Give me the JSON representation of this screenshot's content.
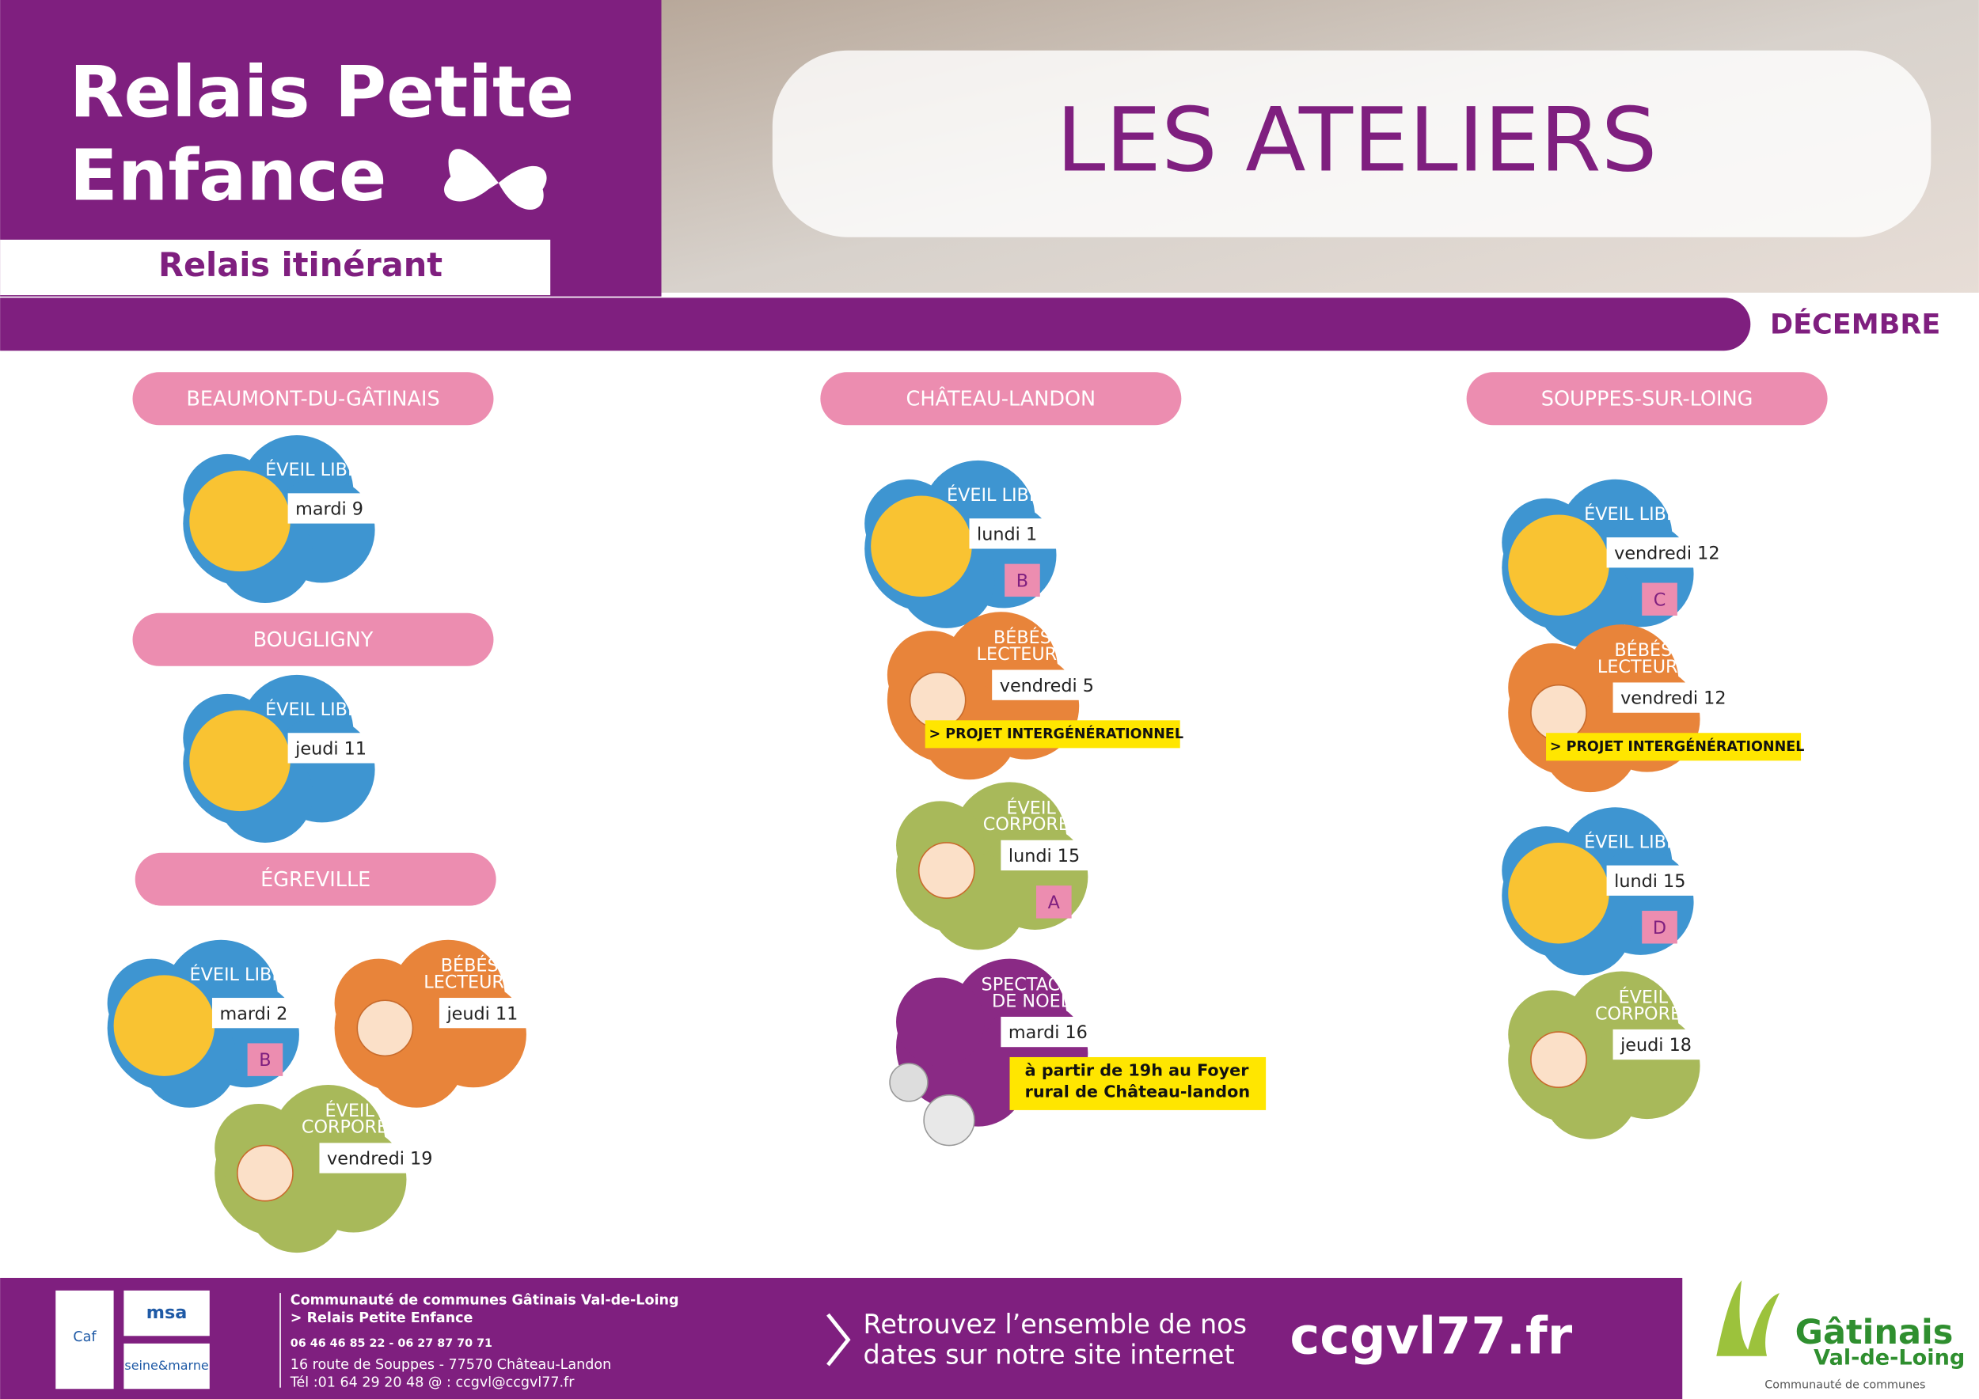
{
  "header": {
    "title_line1": "Relais Petite",
    "title_line2": "Enfance",
    "subtitle": "Relais itinérant",
    "banner": "LES ATELIERS",
    "month": "DÉCEMBRE"
  },
  "locations": [
    {
      "name": "BEAUMONT-DU-GÂTINAIS",
      "ateliers": [
        {
          "kind": "libre",
          "label": [
            "ÉVEIL LIBRE"
          ],
          "day": "mardi 9"
        }
      ]
    },
    {
      "name": "BOUGLIGNY",
      "ateliers": [
        {
          "kind": "libre",
          "label": [
            "ÉVEIL LIBRE"
          ],
          "day": "jeudi 11"
        }
      ]
    },
    {
      "name": "ÉGREVILLE",
      "ateliers": [
        {
          "kind": "libre",
          "label": [
            "ÉVEIL LIBRE"
          ],
          "day": "mardi 2",
          "letter": "B"
        },
        {
          "kind": "lecteurs",
          "label": [
            "BÉBÉS",
            "LECTEURS"
          ],
          "day": "jeudi 11"
        },
        {
          "kind": "corporel",
          "label": [
            "ÉVEIL",
            "CORPOREL"
          ],
          "day": "vendredi 19"
        }
      ]
    },
    {
      "name": "CHÂTEAU-LANDON",
      "ateliers": [
        {
          "kind": "libre",
          "label": [
            "ÉVEIL LIBRE"
          ],
          "day": "lundi 1",
          "letter": "B"
        },
        {
          "kind": "lecteurs",
          "label": [
            "BÉBÉS",
            "LECTEURS"
          ],
          "day": "vendredi 5",
          "note": [
            "> PROJET INTERGÉNÉRATIONNEL"
          ]
        },
        {
          "kind": "corporel",
          "label": [
            "ÉVEIL",
            "CORPOREL"
          ],
          "day": "lundi 15",
          "letter": "A"
        },
        {
          "kind": "spectacle",
          "label": [
            "SPECTACLE",
            "DE NOEL"
          ],
          "day": "mardi 16",
          "note": [
            "à partir de 19h au Foyer",
            "rural de Château-landon"
          ]
        }
      ]
    },
    {
      "name": "SOUPPES-SUR-LOING",
      "ateliers": [
        {
          "kind": "libre",
          "label": [
            "ÉVEIL LIBRE"
          ],
          "day": "vendredi 12",
          "letter": "C"
        },
        {
          "kind": "lecteurs",
          "label": [
            "BÉBÉS",
            "LECTEURS"
          ],
          "day": "vendredi 12",
          "note": [
            "> PROJET INTERGÉNÉRATIONNEL"
          ]
        },
        {
          "kind": "libre",
          "label": [
            "ÉVEIL LIBRE"
          ],
          "day": "lundi 15",
          "letter": "D"
        },
        {
          "kind": "corporel",
          "label": [
            "ÉVEIL",
            "CORPOREL"
          ],
          "day": "jeudi 18"
        }
      ]
    }
  ],
  "footer": {
    "partners": [
      "Caf",
      "msa",
      "seine&marne"
    ],
    "org": "Communauté de communes Gâtinais Val-de-Loing",
    "service": "> Relais Petite Enfance",
    "phones": "06 46 46 85 22 - 06 27 87 70 71",
    "address": "16 route de Souppes - 77570 Château-Landon",
    "contact": "Tél :01 64 29 20 48      @ : ccgvl@ccgvl77.fr",
    "cta": [
      "Retrouvez l’ensemble de nos",
      "dates sur notre site internet"
    ],
    "site": "ccgvl77.fr",
    "logo": [
      "Gâtinais",
      "Val-de-Loing",
      "Communauté de communes"
    ]
  }
}
